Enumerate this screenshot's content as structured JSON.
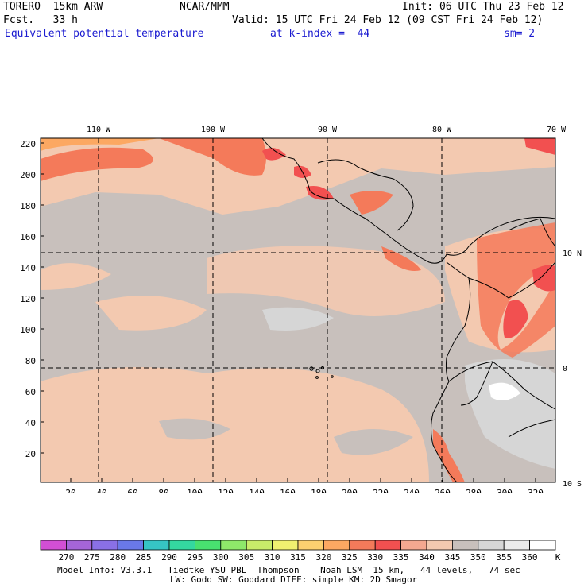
{
  "header": {
    "model": "TORERO  15km ARW",
    "org": "NCAR/MMM",
    "init": "Init: 06 UTC Thu 23 Feb 12",
    "fcst": "Fcst.   33 h",
    "valid": "Valid: 15 UTC Fri 24 Feb 12 (09 CST Fri 24 Feb 12)",
    "field": "Equivalent potential temperature",
    "level": "at k-index =  44",
    "smooth": "sm= 2"
  },
  "map": {
    "top_lon_labels": [
      "110 W",
      "100 W",
      "90 W",
      "80 W",
      "70 W"
    ],
    "right_lat_labels": [
      "10 N",
      "0",
      "10 S"
    ],
    "left_grid_labels": [
      "220",
      "200",
      "180",
      "160",
      "140",
      "120",
      "100",
      "80",
      "60",
      "40",
      "20"
    ],
    "bottom_grid_labels": [
      "20",
      "40",
      "60",
      "80",
      "100",
      "120",
      "140",
      "160",
      "180",
      "200",
      "220",
      "240",
      "260",
      "280",
      "300",
      "320"
    ]
  },
  "colorbar": {
    "labels": [
      "270",
      "275",
      "280",
      "285",
      "290",
      "295",
      "300",
      "305",
      "310",
      "315",
      "320",
      "325",
      "330",
      "335",
      "340",
      "345",
      "350",
      "355",
      "360"
    ],
    "unit": "K",
    "colors": [
      "#d24fd4",
      "#a565d8",
      "#8a70e6",
      "#6a78e8",
      "#36c4c4",
      "#34d8a0",
      "#48e070",
      "#8ee86a",
      "#c8ec6a",
      "#f0f070",
      "#fcd070",
      "#fca862",
      "#f47a5a",
      "#f25050",
      "#f4a890",
      "#f3c9b0",
      "#c8c0bc",
      "#d6d6d6",
      "#ebebeb",
      "#ffffff"
    ]
  },
  "footer": {
    "line1": "Model Info: V3.3.1   Tiedtke YSU PBL  Thompson    Noah LSM  15 km,   44 levels,   74 sec",
    "line2": "LW: Godd SW: Goddard DIFF: simple KM: 2D Smagor"
  }
}
